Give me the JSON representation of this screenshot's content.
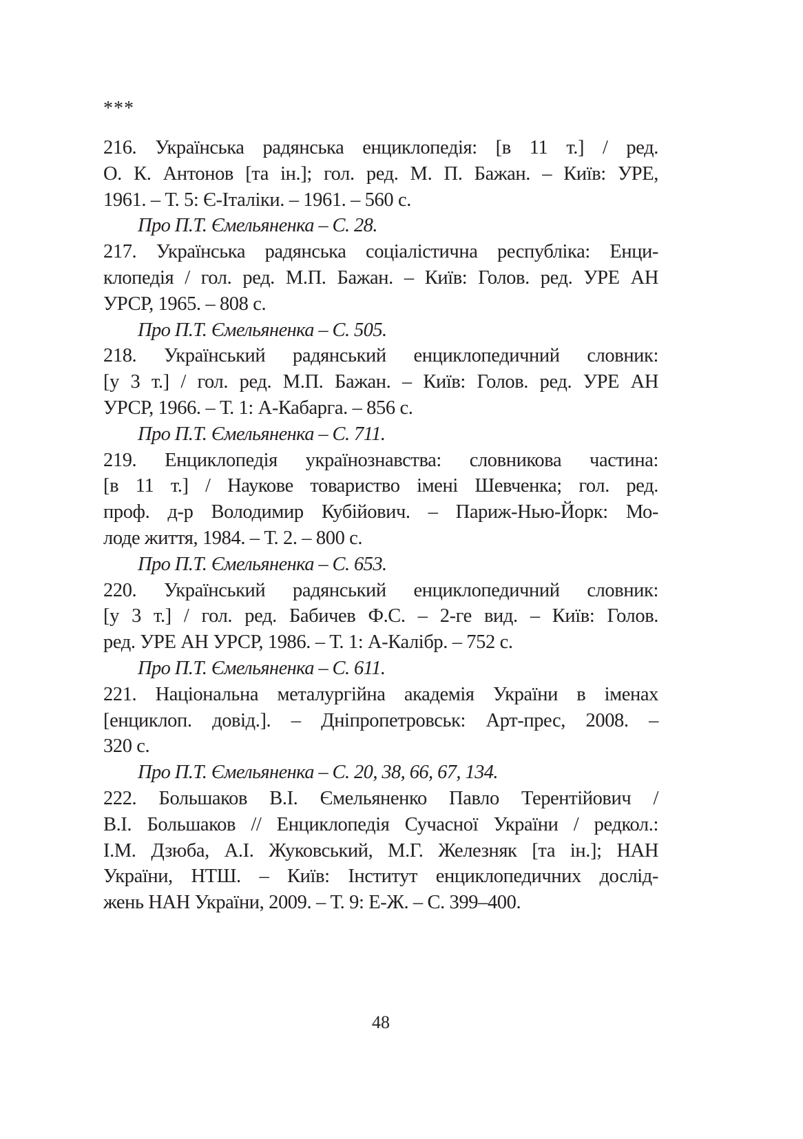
{
  "separator": "***",
  "entries": [
    {
      "lines": [
        "216. Українська радянська енциклопедія: [в 11 т.] / ред.",
        "О. К. Антонов [та ін.]; гол. ред. М. П. Бажан. – Київ: УРЕ,",
        "1961. – Т. 5: Є-Італіки. – 1961. – 560 с."
      ],
      "note": "Про П.Т. Ємельяненка – С. 28."
    },
    {
      "lines": [
        "217. Українська радянська соціалістична республіка: Енци-",
        "клопедія / гол. ред. М.П. Бажан. – Київ: Голов. ред. УРЕ АН",
        "УРСР, 1965. – 808 с."
      ],
      "note": "Про П.Т. Ємельяненка – С. 505."
    },
    {
      "lines": [
        "218. Український радянський енциклопедичний словник:",
        "[у 3 т.] / гол. ред. М.П. Бажан. – Київ: Голов. ред. УРЕ АН",
        "УРСР, 1966. – Т. 1: А-Кабарга. – 856 с."
      ],
      "note": "Про П.Т. Ємельяненка – С. 711."
    },
    {
      "lines": [
        "219. Енциклопедія українознавства: словникова частина:",
        "[в 11 т.] / Наукове товариство імені Шевченка; гол. ред.",
        "проф. д-р Володимир Кубійович. – Париж-Нью-Йорк: Мо-",
        "лоде життя, 1984. – Т. 2. – 800 с."
      ],
      "note": "Про П.Т. Ємельяненка – С. 653."
    },
    {
      "lines": [
        "220. Український радянський енциклопедичний словник:",
        "[у 3 т.] / гол. ред. Бабичев Ф.С. – 2-ге вид. – Київ: Голов.",
        "ред. УРЕ АН УРСР, 1986. – Т. 1: А-Калібр. – 752 с."
      ],
      "note": "Про П.Т. Ємельяненка – С. 611."
    },
    {
      "lines": [
        "221. Національна металургійна академія України в іменах",
        "[енциклоп. довід.]. – Дніпропетровськ: Арт-прес, 2008. –",
        "320 с."
      ],
      "note": "Про П.Т. Ємельяненка – С. 20, 38, 66, 67, 134."
    },
    {
      "lines": [
        "222. Большаков В.І. Ємельяненко Павло Терентійович /",
        "В.І. Большаков // Енциклопедія Сучасної України / редкол.:",
        "І.М. Дзюба, А.І. Жуковський, М.Г. Железняк [та ін.]; НАН",
        "України, НТШ. – Київ: Інститут енциклопедичних дослід-",
        "жень НАН України, 2009. – Т. 9: Е-Ж. – С. 399–400."
      ]
    }
  ],
  "page_number": "48"
}
